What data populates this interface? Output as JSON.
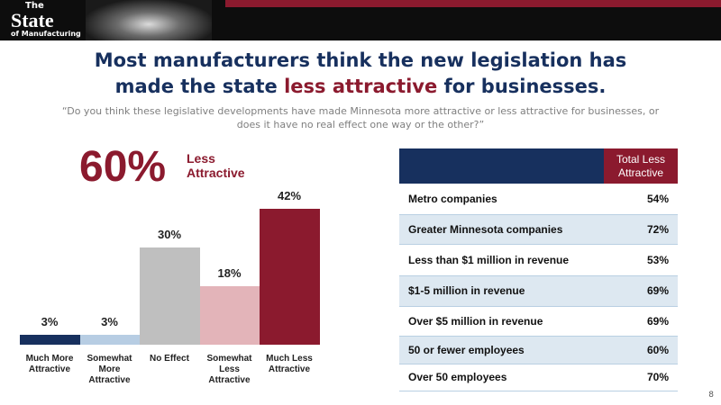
{
  "header": {
    "logo": [
      "The",
      "State",
      "of Manufacturing"
    ]
  },
  "title": [
    "Most manufacturers think the new legislation has made the state ",
    "less attractive",
    " for businesses."
  ],
  "subtitle": "“Do you think these legislative developments have made Minnesota more attractive or less attractive for businesses, or does it have no real effect one way or the other?”",
  "callout": {
    "value": "60%",
    "label": "Less Attractive"
  },
  "chart_data": {
    "type": "bar",
    "categories": [
      "Much More Attractive",
      "Somewhat More Attractive",
      "No Effect",
      "Somewhat Less Attractive",
      "Much Less Attractive"
    ],
    "values": [
      3,
      3,
      30,
      18,
      42
    ],
    "value_labels": [
      "3%",
      "3%",
      "30%",
      "18%",
      "42%"
    ],
    "colors": [
      "#17305e",
      "#b7cde3",
      "#bfbfbf",
      "#e3b4b9",
      "#8b1a2e"
    ]
  },
  "table": {
    "header": [
      "",
      "Total Less Attractive"
    ],
    "rows": [
      [
        "Metro companies",
        "54%"
      ],
      [
        "Greater Minnesota companies",
        "72%"
      ],
      [
        "Less than $1 million in revenue",
        "53%"
      ],
      [
        "$1-5 million in revenue",
        "69%"
      ],
      [
        "Over $5 million in revenue",
        "69%"
      ],
      [
        "50 or fewer employees",
        "60%"
      ],
      [
        "Over 50 employees",
        "70%"
      ]
    ]
  },
  "page_number": "8"
}
